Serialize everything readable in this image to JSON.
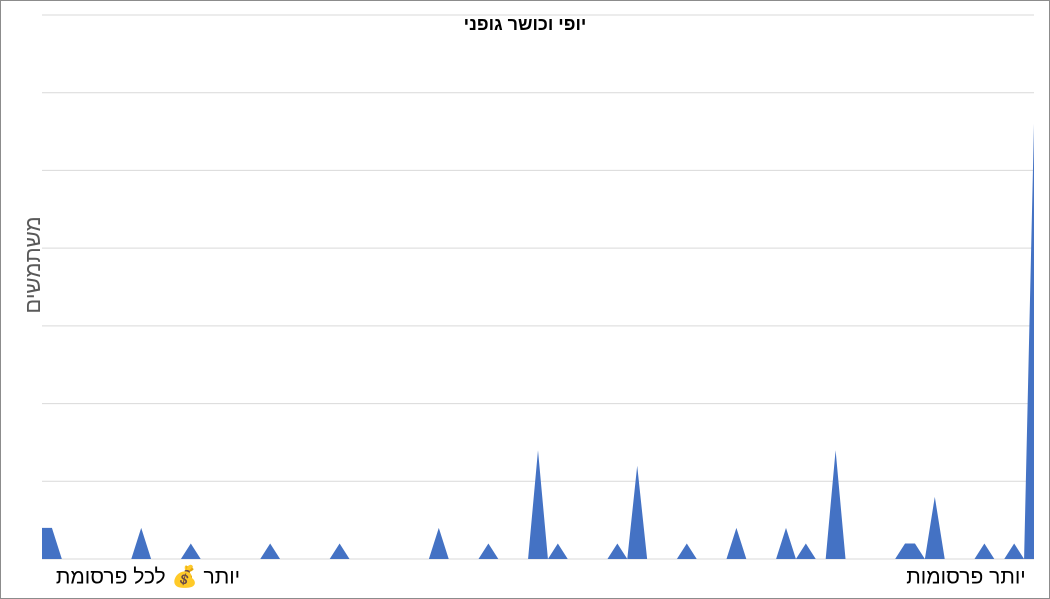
{
  "chart_data": {
    "type": "area",
    "title": "יופי וכושר גופני",
    "y_label": "משתמשים",
    "annotations": [
      "יותר 💰 לכל פרסומת",
      "יותר פרסומות"
    ],
    "categories": [
      null,
      null,
      null,
      null,
      null,
      null,
      null,
      null,
      null,
      null,
      null,
      null,
      null,
      null,
      null,
      null,
      null,
      null,
      null,
      null,
      null,
      null,
      null,
      null,
      null,
      null,
      null,
      null,
      null,
      null,
      null,
      null,
      null,
      null,
      null,
      null,
      null,
      null,
      null,
      null,
      null,
      null,
      null,
      null,
      null,
      null,
      null,
      null,
      null,
      null,
      null,
      null,
      null,
      null,
      null,
      null,
      null,
      null,
      null,
      null,
      null,
      null,
      null,
      null,
      null,
      null,
      null,
      null,
      null,
      null,
      null,
      null,
      null,
      null,
      null,
      null,
      null,
      null,
      null,
      null,
      null,
      null,
      null,
      null,
      null,
      null,
      null,
      null,
      null,
      null,
      null,
      null,
      null,
      null,
      null,
      null,
      null,
      null,
      null,
      null,
      null
    ],
    "values": [
      2,
      2,
      0,
      0,
      0,
      0,
      0,
      0,
      0,
      0,
      2,
      0,
      0,
      0,
      0,
      1,
      0,
      0,
      0,
      0,
      0,
      0,
      0,
      1,
      0,
      0,
      0,
      0,
      0,
      0,
      1,
      0,
      0,
      0,
      0,
      0,
      0,
      0,
      0,
      0,
      2,
      0,
      0,
      0,
      0,
      1,
      0,
      0,
      0,
      0,
      7,
      0,
      1,
      0,
      0,
      0,
      0,
      0,
      1,
      0,
      6,
      0,
      0,
      0,
      0,
      1,
      0,
      0,
      0,
      0,
      2,
      0,
      0,
      0,
      0,
      2,
      0,
      1,
      0,
      0,
      7,
      0,
      0,
      0,
      0,
      0,
      0,
      1,
      1,
      0,
      4,
      0,
      0,
      0,
      0,
      1,
      0,
      0,
      1,
      0,
      28
    ],
    "color": "#4472c4",
    "ylim": [
      0,
      35
    ],
    "yticks": [
      0,
      5,
      10,
      15,
      20,
      25,
      30,
      35
    ],
    "grid": true
  }
}
